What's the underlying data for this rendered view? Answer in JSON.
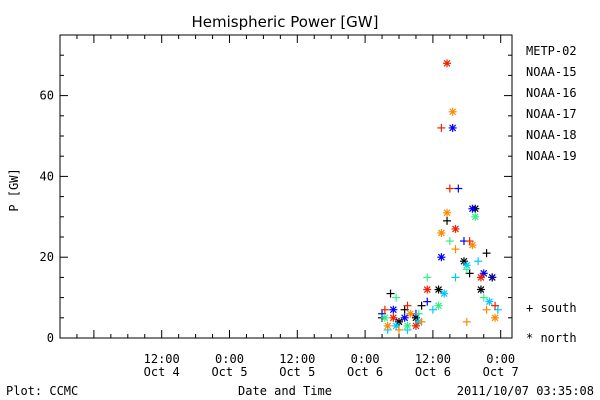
{
  "chart_data": {
    "type": "scatter",
    "title": "Hemispheric Power [GW]",
    "ylabel": "P [GW]",
    "xlabel": "Date and Time",
    "ylim": [
      0,
      75
    ],
    "yticks": [
      0,
      20,
      40,
      60
    ],
    "xlim": [
      "2011-10-03 18:00",
      "2011-10-07 02:00"
    ],
    "xticks": [
      {
        "time": "2011-10-04 12:00",
        "top": "12:00",
        "bottom": "Oct 4"
      },
      {
        "time": "2011-10-05 00:00",
        "top": "0:00",
        "bottom": "Oct 5"
      },
      {
        "time": "2011-10-05 12:00",
        "top": "12:00",
        "bottom": "Oct 5"
      },
      {
        "time": "2011-10-06 00:00",
        "top": "0:00",
        "bottom": "Oct 6"
      },
      {
        "time": "2011-10-06 12:00",
        "top": "12:00",
        "bottom": "Oct 6"
      },
      {
        "time": "2011-10-07 00:00",
        "top": "0:00",
        "bottom": "Oct 7"
      }
    ],
    "legend_position": "right",
    "marker_legend": [
      {
        "symbol": "+",
        "label": "south"
      },
      {
        "symbol": "*",
        "label": "north"
      }
    ],
    "series": [
      {
        "name": "METP-02",
        "color": "#000000",
        "points": [
          {
            "x": "2011-10-06 03:00",
            "y": 5,
            "hemi": "south"
          },
          {
            "x": "2011-10-06 04:30",
            "y": 11,
            "hemi": "south"
          },
          {
            "x": "2011-10-06 06:00",
            "y": 4,
            "hemi": "north"
          },
          {
            "x": "2011-10-06 07:00",
            "y": 7,
            "hemi": "south"
          },
          {
            "x": "2011-10-06 09:00",
            "y": 5,
            "hemi": "north"
          },
          {
            "x": "2011-10-06 10:00",
            "y": 8,
            "hemi": "south"
          },
          {
            "x": "2011-10-06 13:00",
            "y": 12,
            "hemi": "north"
          },
          {
            "x": "2011-10-06 14:30",
            "y": 29,
            "hemi": "south"
          },
          {
            "x": "2011-10-06 17:30",
            "y": 19,
            "hemi": "north"
          },
          {
            "x": "2011-10-06 18:30",
            "y": 16,
            "hemi": "south"
          },
          {
            "x": "2011-10-06 19:30",
            "y": 32,
            "hemi": "north"
          },
          {
            "x": "2011-10-06 20:30",
            "y": 12,
            "hemi": "north"
          },
          {
            "x": "2011-10-06 21:30",
            "y": 21,
            "hemi": "south"
          },
          {
            "x": "2011-10-06 22:30",
            "y": 15,
            "hemi": "north"
          }
        ]
      },
      {
        "name": "NOAA-15",
        "color": "#0000ff",
        "points": [
          {
            "x": "2011-10-06 03:00",
            "y": 6,
            "hemi": "south"
          },
          {
            "x": "2011-10-06 05:00",
            "y": 7,
            "hemi": "north"
          },
          {
            "x": "2011-10-06 07:00",
            "y": 5,
            "hemi": "north"
          },
          {
            "x": "2011-10-06 09:00",
            "y": 6,
            "hemi": "south"
          },
          {
            "x": "2011-10-06 11:00",
            "y": 9,
            "hemi": "south"
          },
          {
            "x": "2011-10-06 13:30",
            "y": 20,
            "hemi": "north"
          },
          {
            "x": "2011-10-06 15:30",
            "y": 52,
            "hemi": "north"
          },
          {
            "x": "2011-10-06 16:30",
            "y": 37,
            "hemi": "south"
          },
          {
            "x": "2011-10-06 17:30",
            "y": 24,
            "hemi": "south"
          },
          {
            "x": "2011-10-06 19:00",
            "y": 32,
            "hemi": "north"
          },
          {
            "x": "2011-10-06 21:00",
            "y": 16,
            "hemi": "north"
          },
          {
            "x": "2011-10-06 22:30",
            "y": 15,
            "hemi": "south"
          }
        ]
      },
      {
        "name": "NOAA-16",
        "color": "#00c8ff",
        "points": [
          {
            "x": "2011-10-06 04:00",
            "y": 2,
            "hemi": "south"
          },
          {
            "x": "2011-10-06 05:30",
            "y": 3,
            "hemi": "north"
          },
          {
            "x": "2011-10-06 07:30",
            "y": 2,
            "hemi": "south"
          },
          {
            "x": "2011-10-06 09:30",
            "y": 4,
            "hemi": "north"
          },
          {
            "x": "2011-10-06 12:00",
            "y": 7,
            "hemi": "south"
          },
          {
            "x": "2011-10-06 14:00",
            "y": 11,
            "hemi": "north"
          },
          {
            "x": "2011-10-06 16:00",
            "y": 15,
            "hemi": "south"
          },
          {
            "x": "2011-10-06 18:00",
            "y": 18,
            "hemi": "north"
          },
          {
            "x": "2011-10-06 20:00",
            "y": 19,
            "hemi": "south"
          },
          {
            "x": "2011-10-06 22:00",
            "y": 9,
            "hemi": "north"
          },
          {
            "x": "2011-10-06 23:30",
            "y": 7,
            "hemi": "south"
          }
        ]
      },
      {
        "name": "NOAA-17",
        "color": "#33ee88",
        "points": [
          {
            "x": "2011-10-06 03:30",
            "y": 5,
            "hemi": "north"
          },
          {
            "x": "2011-10-06 05:30",
            "y": 10,
            "hemi": "south"
          },
          {
            "x": "2011-10-06 07:30",
            "y": 3,
            "hemi": "north"
          },
          {
            "x": "2011-10-06 09:30",
            "y": 6,
            "hemi": "south"
          },
          {
            "x": "2011-10-06 11:00",
            "y": 15,
            "hemi": "south"
          },
          {
            "x": "2011-10-06 13:00",
            "y": 8,
            "hemi": "north"
          },
          {
            "x": "2011-10-06 15:00",
            "y": 24,
            "hemi": "south"
          },
          {
            "x": "2011-10-06 18:00",
            "y": 17,
            "hemi": "south"
          },
          {
            "x": "2011-10-06 19:30",
            "y": 30,
            "hemi": "north"
          },
          {
            "x": "2011-10-06 21:00",
            "y": 10,
            "hemi": "south"
          }
        ]
      },
      {
        "name": "NOAA-18",
        "color": "#ff8800",
        "points": [
          {
            "x": "2011-10-06 04:00",
            "y": 3,
            "hemi": "north"
          },
          {
            "x": "2011-10-06 06:00",
            "y": 2,
            "hemi": "south"
          },
          {
            "x": "2011-10-06 08:00",
            "y": 6,
            "hemi": "north"
          },
          {
            "x": "2011-10-06 10:00",
            "y": 4,
            "hemi": "south"
          },
          {
            "x": "2011-10-06 13:30",
            "y": 26,
            "hemi": "north"
          },
          {
            "x": "2011-10-06 14:30",
            "y": 31,
            "hemi": "north"
          },
          {
            "x": "2011-10-06 15:30",
            "y": 56,
            "hemi": "north"
          },
          {
            "x": "2011-10-06 16:00",
            "y": 22,
            "hemi": "south"
          },
          {
            "x": "2011-10-06 18:00",
            "y": 4,
            "hemi": "south"
          },
          {
            "x": "2011-10-06 19:00",
            "y": 23,
            "hemi": "north"
          },
          {
            "x": "2011-10-06 21:30",
            "y": 7,
            "hemi": "south"
          },
          {
            "x": "2011-10-06 23:00",
            "y": 5,
            "hemi": "north"
          }
        ]
      },
      {
        "name": "NOAA-19",
        "color": "#ee2200",
        "points": [
          {
            "x": "2011-10-06 03:30",
            "y": 7,
            "hemi": "south"
          },
          {
            "x": "2011-10-06 05:00",
            "y": 5,
            "hemi": "north"
          },
          {
            "x": "2011-10-06 07:30",
            "y": 8,
            "hemi": "south"
          },
          {
            "x": "2011-10-06 09:00",
            "y": 3,
            "hemi": "north"
          },
          {
            "x": "2011-10-06 11:00",
            "y": 12,
            "hemi": "north"
          },
          {
            "x": "2011-10-06 13:30",
            "y": 52,
            "hemi": "south"
          },
          {
            "x": "2011-10-06 14:30",
            "y": 68,
            "hemi": "north"
          },
          {
            "x": "2011-10-06 15:00",
            "y": 37,
            "hemi": "south"
          },
          {
            "x": "2011-10-06 16:00",
            "y": 27,
            "hemi": "north"
          },
          {
            "x": "2011-10-06 18:30",
            "y": 24,
            "hemi": "south"
          },
          {
            "x": "2011-10-06 20:30",
            "y": 15,
            "hemi": "north"
          },
          {
            "x": "2011-10-06 23:00",
            "y": 8,
            "hemi": "south"
          }
        ]
      }
    ]
  },
  "footer": {
    "left": "Plot: CCMC",
    "right": "2011/10/07 03:35:08"
  }
}
